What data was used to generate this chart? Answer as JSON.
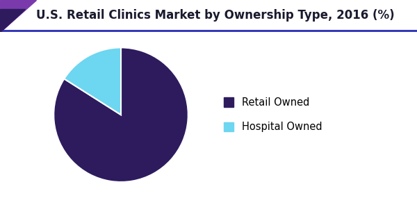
{
  "title": "U.S. Retail Clinics Market by Ownership Type, 2016 (%)",
  "slices": [
    84,
    16
  ],
  "labels": [
    "Retail Owned",
    "Hospital Owned"
  ],
  "colors": [
    "#2d1b5e",
    "#6dd6f0"
  ],
  "startangle": 90,
  "background_color": "#ffffff",
  "header_bg": "#ffffff",
  "header_line_color": "#6633aa",
  "header_line_color2": "#2233bb",
  "triangle_color1": "#7b3aab",
  "triangle_color2": "#2d1b5e",
  "title_fontsize": 12,
  "title_color": "#1a1a2e",
  "legend_fontsize": 10.5
}
